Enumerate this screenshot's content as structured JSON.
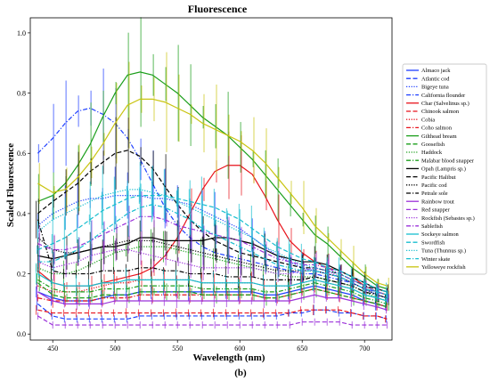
{
  "chart_data": {
    "type": "line",
    "title": "Fluorescence",
    "xlabel": "Wavelength (nm)",
    "ylabel": "Scaled Fluorescence",
    "panel_label": "(b)",
    "xlim": [
      432,
      722
    ],
    "ylim": [
      -0.02,
      1.05
    ],
    "xticks": [
      450,
      500,
      550,
      600,
      650,
      700
    ],
    "yticks": [
      0.0,
      0.2,
      0.4,
      0.6,
      0.8,
      1.0
    ],
    "ytick_labels": [
      "0.0",
      "0.2",
      "0.4",
      "0.6",
      "0.8",
      "1.0"
    ],
    "grid": false,
    "legend_position": "right",
    "x": [
      438,
      450,
      460,
      470,
      480,
      490,
      500,
      510,
      520,
      530,
      540,
      550,
      560,
      570,
      580,
      590,
      600,
      610,
      620,
      630,
      640,
      650,
      660,
      670,
      680,
      690,
      700,
      710,
      718
    ],
    "series": [
      {
        "name": "Almaco jack",
        "color": "#1f3fff",
        "dash": "solid",
        "values": [
          0.14,
          0.12,
          0.11,
          0.11,
          0.11,
          0.12,
          0.13,
          0.13,
          0.14,
          0.14,
          0.14,
          0.14,
          0.14,
          0.14,
          0.14,
          0.14,
          0.14,
          0.14,
          0.13,
          0.13,
          0.14,
          0.15,
          0.16,
          0.15,
          0.14,
          0.13,
          0.11,
          0.1,
          0.09
        ]
      },
      {
        "name": "Atlantic cod",
        "color": "#1f3fff",
        "dash": "dashed",
        "values": [
          0.1,
          0.06,
          0.05,
          0.05,
          0.05,
          0.05,
          0.05,
          0.05,
          0.06,
          0.06,
          0.06,
          0.06,
          0.06,
          0.06,
          0.06,
          0.06,
          0.06,
          0.06,
          0.06,
          0.06,
          0.07,
          0.07,
          0.08,
          0.08,
          0.07,
          0.07,
          0.06,
          0.06,
          0.05
        ]
      },
      {
        "name": "Bigeye tuna",
        "color": "#1f3fff",
        "dash": "dotted",
        "values": [
          0.36,
          0.4,
          0.42,
          0.44,
          0.45,
          0.45,
          0.46,
          0.46,
          0.46,
          0.45,
          0.45,
          0.44,
          0.43,
          0.41,
          0.39,
          0.37,
          0.35,
          0.32,
          0.29,
          0.26,
          0.24,
          0.22,
          0.21,
          0.2,
          0.19,
          0.17,
          0.15,
          0.13,
          0.12
        ]
      },
      {
        "name": "California flounder",
        "color": "#1f3fff",
        "dash": "dashdot",
        "values": [
          0.6,
          0.65,
          0.7,
          0.74,
          0.75,
          0.73,
          0.7,
          0.65,
          0.58,
          0.5,
          0.42,
          0.36,
          0.32,
          0.29,
          0.27,
          0.26,
          0.25,
          0.24,
          0.23,
          0.22,
          0.21,
          0.2,
          0.2,
          0.19,
          0.18,
          0.17,
          0.15,
          0.14,
          0.13
        ]
      },
      {
        "name": "Char (Salvelinus sp.)",
        "color": "#e8121b",
        "dash": "solid",
        "values": [
          0.21,
          0.17,
          0.16,
          0.16,
          0.16,
          0.17,
          0.18,
          0.19,
          0.2,
          0.22,
          0.26,
          0.32,
          0.4,
          0.48,
          0.54,
          0.56,
          0.56,
          0.53,
          0.46,
          0.38,
          0.31,
          0.27,
          0.24,
          0.22,
          0.21,
          0.19,
          0.16,
          0.14,
          0.13
        ]
      },
      {
        "name": "Chinook salmon",
        "color": "#e8121b",
        "dash": "dashed",
        "values": [
          0.08,
          0.07,
          0.07,
          0.07,
          0.07,
          0.07,
          0.07,
          0.07,
          0.07,
          0.07,
          0.07,
          0.07,
          0.07,
          0.07,
          0.07,
          0.07,
          0.07,
          0.07,
          0.07,
          0.07,
          0.07,
          0.08,
          0.08,
          0.08,
          0.08,
          0.07,
          0.06,
          0.06,
          0.05
        ]
      },
      {
        "name": "Cobia",
        "color": "#e8121b",
        "dash": "dotted",
        "values": [
          0.16,
          0.14,
          0.14,
          0.14,
          0.15,
          0.16,
          0.17,
          0.17,
          0.18,
          0.18,
          0.18,
          0.18,
          0.18,
          0.17,
          0.17,
          0.17,
          0.17,
          0.17,
          0.16,
          0.16,
          0.16,
          0.17,
          0.18,
          0.17,
          0.16,
          0.15,
          0.13,
          0.12,
          0.11
        ]
      },
      {
        "name": "Coho salmon",
        "color": "#e8121b",
        "dash": "dashdot",
        "values": [
          0.12,
          0.11,
          0.11,
          0.11,
          0.11,
          0.12,
          0.12,
          0.12,
          0.13,
          0.13,
          0.13,
          0.13,
          0.13,
          0.13,
          0.13,
          0.13,
          0.13,
          0.13,
          0.12,
          0.12,
          0.13,
          0.14,
          0.15,
          0.14,
          0.13,
          0.12,
          0.11,
          0.1,
          0.09
        ]
      },
      {
        "name": "Gilthead bream",
        "color": "#1a9e1a",
        "dash": "solid",
        "values": [
          0.44,
          0.46,
          0.5,
          0.56,
          0.63,
          0.72,
          0.8,
          0.86,
          0.87,
          0.86,
          0.83,
          0.8,
          0.76,
          0.72,
          0.69,
          0.66,
          0.62,
          0.58,
          0.53,
          0.48,
          0.43,
          0.38,
          0.33,
          0.3,
          0.26,
          0.22,
          0.19,
          0.16,
          0.15
        ]
      },
      {
        "name": "Goosefish",
        "color": "#1a9e1a",
        "dash": "dashed",
        "values": [
          0.17,
          0.13,
          0.12,
          0.12,
          0.12,
          0.13,
          0.13,
          0.13,
          0.14,
          0.14,
          0.14,
          0.14,
          0.14,
          0.13,
          0.13,
          0.13,
          0.13,
          0.13,
          0.12,
          0.12,
          0.13,
          0.14,
          0.15,
          0.14,
          0.13,
          0.12,
          0.11,
          0.1,
          0.09
        ]
      },
      {
        "name": "Haddock",
        "color": "#1a9e1a",
        "dash": "dotted",
        "values": [
          0.22,
          0.2,
          0.2,
          0.21,
          0.23,
          0.25,
          0.27,
          0.28,
          0.29,
          0.29,
          0.29,
          0.28,
          0.27,
          0.26,
          0.25,
          0.24,
          0.23,
          0.22,
          0.21,
          0.2,
          0.19,
          0.19,
          0.19,
          0.18,
          0.17,
          0.16,
          0.14,
          0.12,
          0.11
        ]
      },
      {
        "name": "Malabar blood snapper",
        "color": "#1a9e1a",
        "dash": "dashdot",
        "values": [
          0.18,
          0.15,
          0.14,
          0.14,
          0.14,
          0.15,
          0.15,
          0.15,
          0.16,
          0.16,
          0.16,
          0.16,
          0.16,
          0.15,
          0.15,
          0.15,
          0.15,
          0.15,
          0.14,
          0.14,
          0.15,
          0.16,
          0.17,
          0.16,
          0.15,
          0.14,
          0.12,
          0.11,
          0.1
        ]
      },
      {
        "name": "Opah (Lampris sp.)",
        "color": "#000000",
        "dash": "solid",
        "values": [
          0.26,
          0.25,
          0.26,
          0.27,
          0.28,
          0.29,
          0.29,
          0.3,
          0.32,
          0.32,
          0.31,
          0.31,
          0.31,
          0.31,
          0.32,
          0.32,
          0.31,
          0.3,
          0.28,
          0.26,
          0.25,
          0.24,
          0.24,
          0.23,
          0.21,
          0.19,
          0.17,
          0.15,
          0.14
        ]
      },
      {
        "name": "Pacific Halibut",
        "color": "#000000",
        "dash": "dashed",
        "values": [
          0.4,
          0.44,
          0.47,
          0.5,
          0.54,
          0.57,
          0.6,
          0.61,
          0.59,
          0.55,
          0.49,
          0.43,
          0.38,
          0.34,
          0.31,
          0.29,
          0.27,
          0.26,
          0.25,
          0.24,
          0.23,
          0.22,
          0.22,
          0.21,
          0.2,
          0.18,
          0.16,
          0.15,
          0.14
        ]
      },
      {
        "name": "Pacific cod",
        "color": "#000000",
        "dash": "dotted",
        "values": [
          0.32,
          0.28,
          0.27,
          0.27,
          0.28,
          0.29,
          0.3,
          0.31,
          0.31,
          0.31,
          0.3,
          0.29,
          0.28,
          0.27,
          0.26,
          0.25,
          0.24,
          0.23,
          0.22,
          0.21,
          0.21,
          0.21,
          0.21,
          0.2,
          0.19,
          0.17,
          0.15,
          0.13,
          0.12
        ]
      },
      {
        "name": "Petrale sole",
        "color": "#000000",
        "dash": "dashdot",
        "values": [
          0.38,
          0.21,
          0.2,
          0.2,
          0.2,
          0.21,
          0.21,
          0.21,
          0.22,
          0.22,
          0.21,
          0.21,
          0.2,
          0.2,
          0.2,
          0.19,
          0.19,
          0.19,
          0.18,
          0.18,
          0.18,
          0.18,
          0.19,
          0.18,
          0.17,
          0.16,
          0.14,
          0.13,
          0.12
        ]
      },
      {
        "name": "Rainbow trout",
        "color": "#9b30d9",
        "dash": "solid",
        "values": [
          0.14,
          0.11,
          0.1,
          0.1,
          0.1,
          0.1,
          0.11,
          0.11,
          0.11,
          0.11,
          0.11,
          0.11,
          0.11,
          0.11,
          0.11,
          0.11,
          0.11,
          0.11,
          0.11,
          0.11,
          0.11,
          0.12,
          0.13,
          0.12,
          0.12,
          0.11,
          0.1,
          0.09,
          0.08
        ]
      },
      {
        "name": "Red snapper",
        "color": "#9b30d9",
        "dash": "dashed",
        "values": [
          0.06,
          0.03,
          0.03,
          0.03,
          0.03,
          0.03,
          0.03,
          0.03,
          0.03,
          0.03,
          0.03,
          0.03,
          0.03,
          0.03,
          0.03,
          0.03,
          0.03,
          0.03,
          0.03,
          0.03,
          0.03,
          0.04,
          0.04,
          0.04,
          0.04,
          0.03,
          0.03,
          0.03,
          0.03
        ]
      },
      {
        "name": "Rockfish (Sebastes sp.)",
        "color": "#9b30d9",
        "dash": "dotted",
        "values": [
          0.24,
          0.22,
          0.23,
          0.24,
          0.26,
          0.27,
          0.28,
          0.28,
          0.27,
          0.26,
          0.25,
          0.24,
          0.23,
          0.22,
          0.22,
          0.22,
          0.22,
          0.22,
          0.21,
          0.2,
          0.2,
          0.21,
          0.22,
          0.21,
          0.19,
          0.17,
          0.15,
          0.14,
          0.13
        ]
      },
      {
        "name": "Sablefish",
        "color": "#9b30d9",
        "dash": "dashdot",
        "values": [
          0.3,
          0.28,
          0.28,
          0.29,
          0.31,
          0.33,
          0.35,
          0.37,
          0.39,
          0.39,
          0.38,
          0.36,
          0.35,
          0.34,
          0.33,
          0.32,
          0.31,
          0.29,
          0.27,
          0.25,
          0.24,
          0.23,
          0.23,
          0.22,
          0.2,
          0.18,
          0.16,
          0.14,
          0.13
        ]
      },
      {
        "name": "Sockeye salmon",
        "color": "#17becf",
        "dash": "solid",
        "values": [
          0.2,
          0.17,
          0.16,
          0.16,
          0.16,
          0.17,
          0.17,
          0.18,
          0.18,
          0.18,
          0.18,
          0.18,
          0.18,
          0.17,
          0.17,
          0.17,
          0.17,
          0.17,
          0.16,
          0.16,
          0.16,
          0.17,
          0.18,
          0.17,
          0.16,
          0.15,
          0.13,
          0.12,
          0.11
        ]
      },
      {
        "name": "Swordfish",
        "color": "#17becf",
        "dash": "dashed",
        "values": [
          0.28,
          0.3,
          0.32,
          0.35,
          0.38,
          0.41,
          0.43,
          0.45,
          0.46,
          0.46,
          0.46,
          0.45,
          0.44,
          0.43,
          0.42,
          0.4,
          0.38,
          0.35,
          0.32,
          0.29,
          0.27,
          0.25,
          0.24,
          0.22,
          0.21,
          0.19,
          0.17,
          0.15,
          0.14
        ]
      },
      {
        "name": "Tuna (Thunnus sp.)",
        "color": "#17becf",
        "dash": "dotted",
        "values": [
          0.34,
          0.38,
          0.4,
          0.42,
          0.44,
          0.46,
          0.47,
          0.48,
          0.48,
          0.47,
          0.46,
          0.44,
          0.42,
          0.4,
          0.38,
          0.36,
          0.34,
          0.32,
          0.29,
          0.27,
          0.25,
          0.23,
          0.22,
          0.21,
          0.2,
          0.18,
          0.16,
          0.14,
          0.13
        ]
      },
      {
        "name": "Winter skate",
        "color": "#17becf",
        "dash": "dashdot",
        "values": [
          0.24,
          0.24,
          0.26,
          0.28,
          0.31,
          0.34,
          0.37,
          0.4,
          0.42,
          0.43,
          0.42,
          0.4,
          0.38,
          0.35,
          0.33,
          0.31,
          0.29,
          0.27,
          0.25,
          0.23,
          0.22,
          0.21,
          0.21,
          0.2,
          0.19,
          0.17,
          0.15,
          0.14,
          0.13
        ]
      },
      {
        "name": "Yelloweye rockfish",
        "color": "#c9c411",
        "dash": "solid",
        "values": [
          0.5,
          0.47,
          0.48,
          0.52,
          0.57,
          0.63,
          0.7,
          0.76,
          0.78,
          0.78,
          0.77,
          0.75,
          0.73,
          0.7,
          0.68,
          0.66,
          0.64,
          0.61,
          0.57,
          0.52,
          0.47,
          0.42,
          0.36,
          0.32,
          0.28,
          0.24,
          0.2,
          0.17,
          0.16
        ]
      }
    ]
  }
}
